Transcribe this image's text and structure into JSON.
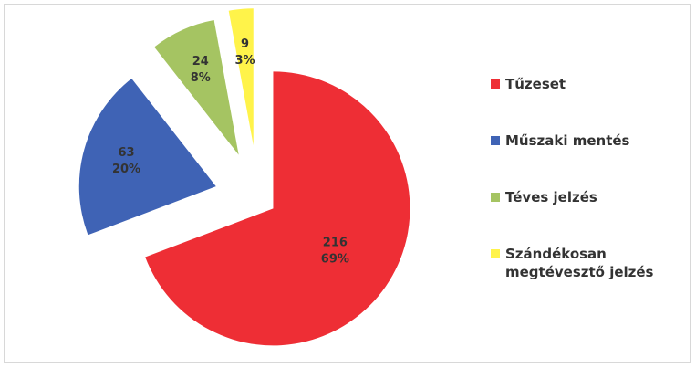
{
  "chart_data": {
    "type": "pie",
    "categories": [
      "Tűzeset",
      "Műszaki mentés",
      "Téves jelzés",
      "Szándékosan megtévesztő jelzés"
    ],
    "values": [
      216,
      63,
      24,
      9
    ],
    "percent_labels": [
      "69%",
      "20%",
      "8%",
      "3%"
    ],
    "colors": [
      "#ee2e35",
      "#3f63b5",
      "#a5c462",
      "#fff34a"
    ],
    "exploded": true,
    "legend": "right"
  }
}
